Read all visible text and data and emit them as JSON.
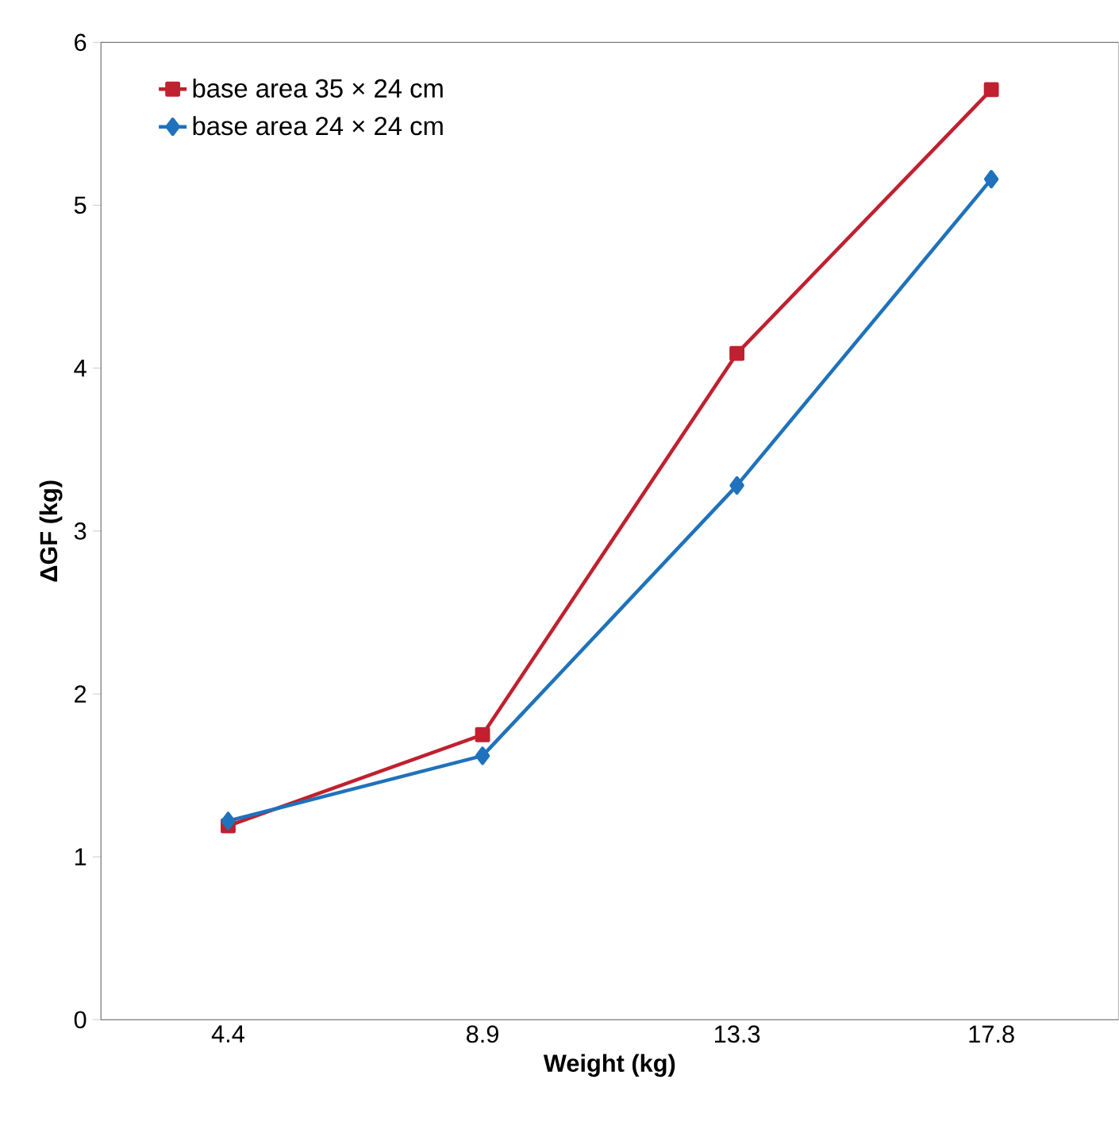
{
  "chart_data": {
    "type": "line",
    "xlabel": "Weight (kg)",
    "ylabel": "ΔGF (kg)",
    "categories": [
      "4.4",
      "8.9",
      "13.3",
      "17.8"
    ],
    "series": [
      {
        "name": "base area 35 × 24 cm",
        "color": "#c0202f",
        "marker": "square",
        "values": [
          1.19,
          1.75,
          4.09,
          5.71
        ]
      },
      {
        "name": "base area 24 × 24 cm",
        "color": "#1f72bb",
        "marker": "diamond",
        "values": [
          1.22,
          1.62,
          3.28,
          5.16
        ]
      }
    ],
    "ylim": [
      0,
      6
    ],
    "yticks": [
      0,
      1,
      2,
      3,
      4,
      5,
      6
    ],
    "grid": false,
    "legend": "top left",
    "line_style": "solid"
  }
}
